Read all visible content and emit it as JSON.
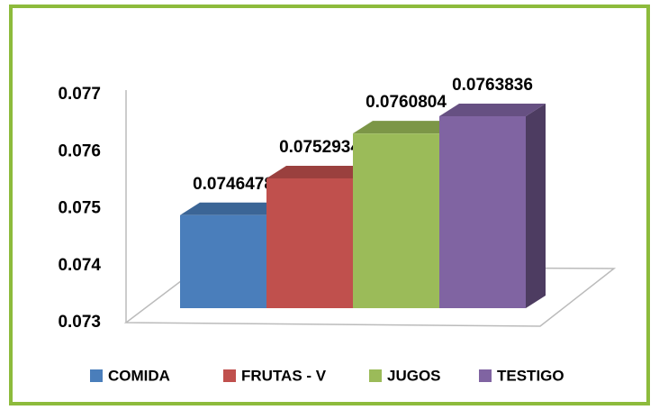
{
  "chart_data": {
    "type": "bar3d",
    "categories": [
      "COMIDA",
      "FRUTAS - V",
      "JUGOS",
      "TESTIGO"
    ],
    "values": [
      0.0746478,
      0.0752934,
      0.0760804,
      0.0763836
    ],
    "colors": [
      "#4a7ebb",
      "#c0504d",
      "#9bbb59",
      "#8064a2"
    ],
    "ylim": [
      0.073,
      0.077
    ],
    "yticks": [
      0.073,
      0.074,
      0.075,
      0.076,
      0.077
    ],
    "legend": "bottom"
  }
}
